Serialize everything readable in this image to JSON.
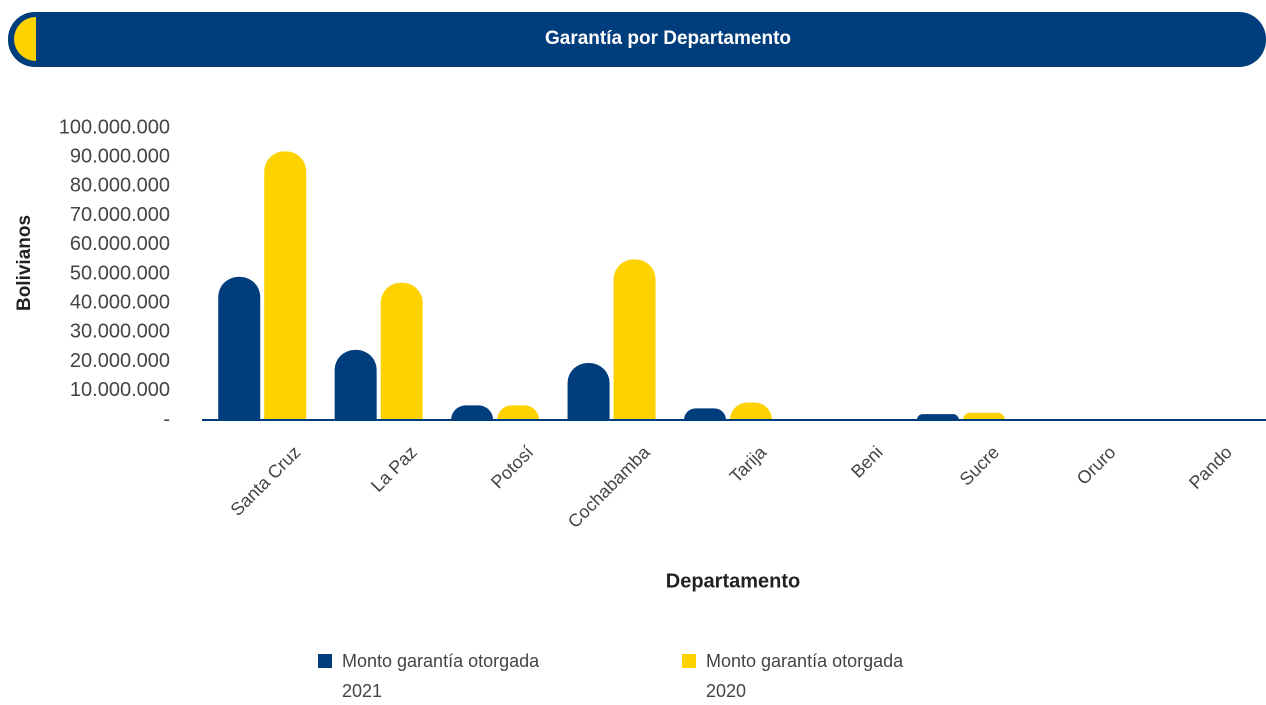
{
  "chart_data": {
    "type": "bar",
    "title": "Garantía por Departamento",
    "x_label": "Departamento",
    "y_label": "Bolivianos",
    "categories": [
      "Santa Cruz",
      "La Paz",
      "Potosí",
      "Cochabamba",
      "Tarija",
      "Beni",
      "Sucre",
      "Oruro",
      "Pando"
    ],
    "series": [
      {
        "name": "Monto garantía otorgada 2021",
        "color": "#003d7c",
        "values": [
          49000000,
          24000000,
          5000000,
          19500000,
          4000000,
          0,
          2000000,
          0,
          0
        ]
      },
      {
        "name": "Monto garantía otorgada 2020",
        "color": "#fdd200",
        "values": [
          92000000,
          47000000,
          5000000,
          55000000,
          6000000,
          0,
          2500000,
          0,
          0
        ]
      }
    ],
    "ylim": [
      0,
      100000000
    ],
    "yticks": [
      {
        "value": 0,
        "label": "-"
      },
      {
        "value": 10000000,
        "label": "10.000.000"
      },
      {
        "value": 20000000,
        "label": "20.000.000"
      },
      {
        "value": 30000000,
        "label": "30.000.000"
      },
      {
        "value": 40000000,
        "label": "40.000.000"
      },
      {
        "value": 50000000,
        "label": "50.000.000"
      },
      {
        "value": 60000000,
        "label": "60.000.000"
      },
      {
        "value": 70000000,
        "label": "70.000.000"
      },
      {
        "value": 80000000,
        "label": "80.000.000"
      },
      {
        "value": 90000000,
        "label": "90.000.000"
      },
      {
        "value": 100000000,
        "label": "100.000.000"
      }
    ],
    "grid": false,
    "legend": "bottom"
  }
}
